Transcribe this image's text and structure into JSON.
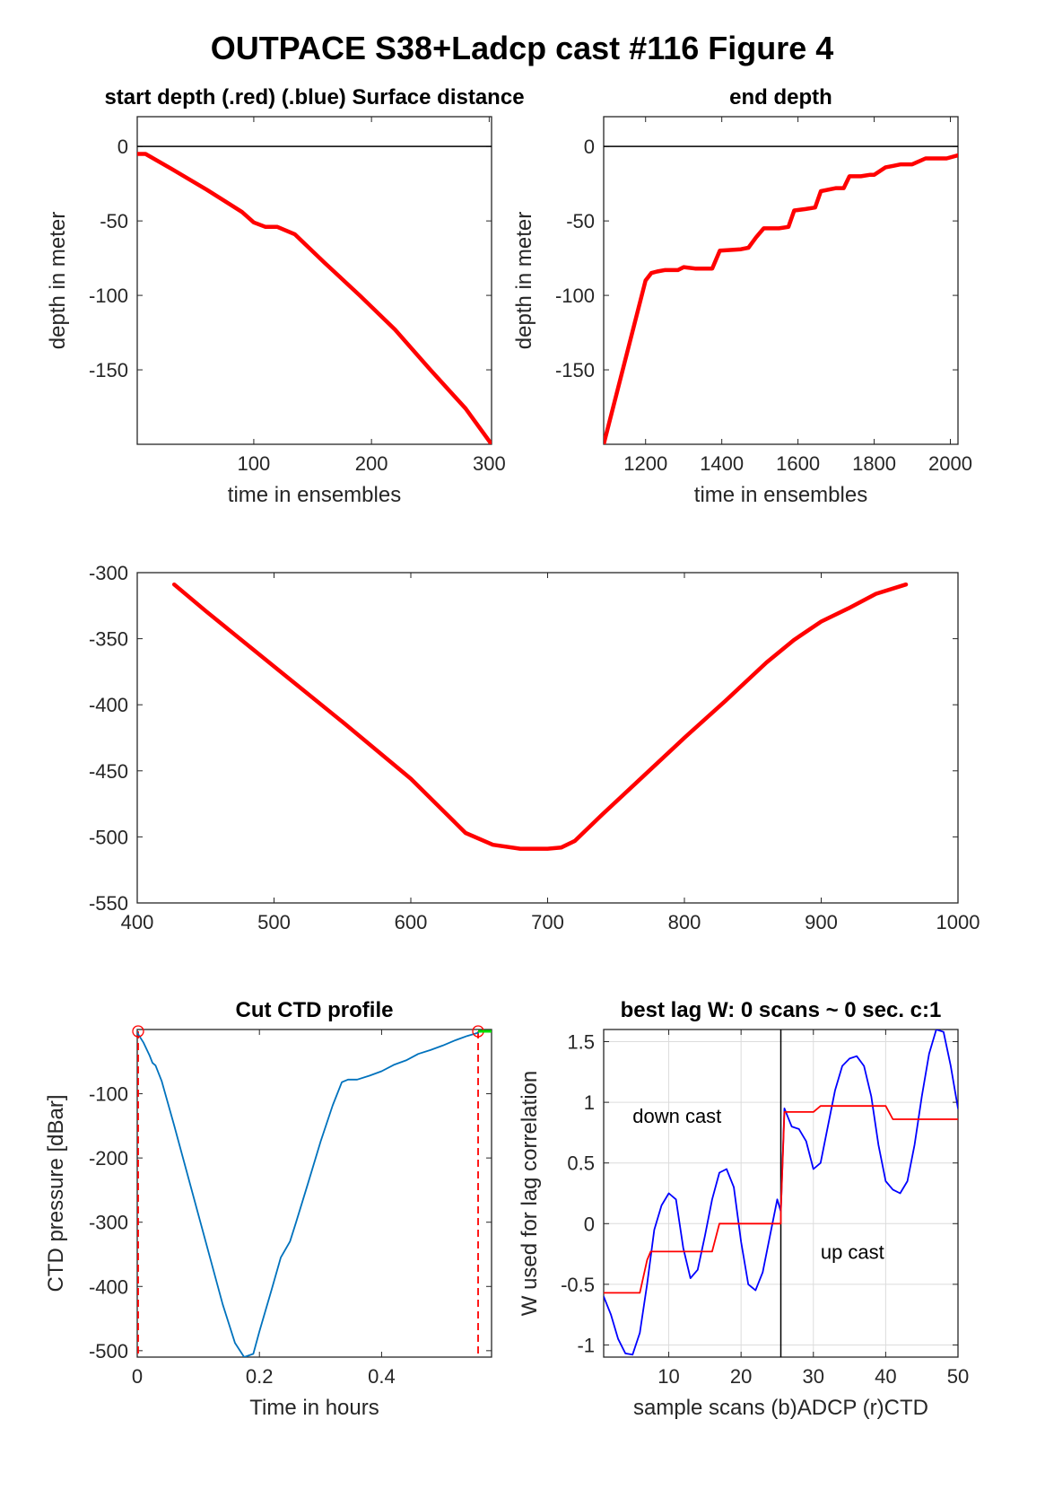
{
  "figure_title": "OUTPACE S38+Ladcp cast #116   Figure 4",
  "colors": {
    "red": "#ff0000",
    "blue": "#0000ff",
    "ctd": "#0072bd",
    "green": "#00dd00",
    "axis": "#262626",
    "zero_line": "#000000"
  },
  "chart_data": [
    {
      "id": "start_depth",
      "type": "line",
      "title": "start depth (.red) (.blue) Surface distance",
      "xlabel": "time in ensembles",
      "ylabel": "depth in meter",
      "xlim": [
        1,
        302
      ],
      "ylim": [
        -200,
        20
      ],
      "xticks": [
        100,
        200,
        300
      ],
      "yticks": [
        0,
        -50,
        -100,
        -150
      ],
      "hline": 0,
      "grid": false,
      "series": [
        {
          "color": "red",
          "x": [
            1,
            8,
            30,
            60,
            90,
            100,
            110,
            120,
            135,
            160,
            190,
            220,
            250,
            280,
            302
          ],
          "y": [
            -5,
            -5,
            -15,
            -29,
            -44,
            -51,
            -54,
            -54,
            -59,
            -78,
            -100,
            -123,
            -150,
            -176,
            -200
          ]
        }
      ]
    },
    {
      "id": "end_depth",
      "type": "line",
      "title": "end depth",
      "xlabel": "time in ensembles",
      "ylabel": "depth in meter",
      "xlim": [
        1090,
        2020
      ],
      "ylim": [
        -200,
        20
      ],
      "xticks": [
        1200,
        1400,
        1600,
        1800,
        2000
      ],
      "yticks": [
        0,
        -50,
        -100,
        -150
      ],
      "hline": 0,
      "grid": false,
      "series": [
        {
          "color": "red",
          "x": [
            1090,
            1200,
            1215,
            1230,
            1250,
            1285,
            1300,
            1330,
            1375,
            1395,
            1450,
            1470,
            1490,
            1510,
            1550,
            1575,
            1590,
            1620,
            1645,
            1660,
            1700,
            1720,
            1735,
            1765,
            1790,
            1800,
            1830,
            1850,
            1870,
            1900,
            1935,
            1945,
            1990,
            2020
          ],
          "y": [
            -200,
            -90,
            -85,
            -84,
            -83,
            -83,
            -81,
            -82,
            -82,
            -70,
            -69,
            -68,
            -61,
            -55,
            -55,
            -54,
            -43,
            -42,
            -41,
            -30,
            -28,
            -28,
            -20,
            -20,
            -19,
            -19,
            -14,
            -13,
            -12,
            -12,
            -8,
            -8,
            -8,
            -6
          ]
        }
      ]
    },
    {
      "id": "bottom_track",
      "type": "line",
      "title": "",
      "xlabel": "",
      "ylabel": "",
      "xlim": [
        400,
        1000
      ],
      "ylim": [
        -550,
        -300
      ],
      "xticks": [
        400,
        500,
        600,
        700,
        800,
        900,
        1000
      ],
      "yticks": [
        -300,
        -350,
        -400,
        -450,
        -500,
        -550
      ],
      "grid": false,
      "series": [
        {
          "color": "red",
          "x": [
            427,
            450,
            500,
            550,
            600,
            640,
            660,
            680,
            700,
            710,
            720,
            740,
            770,
            800,
            830,
            860,
            880,
            900,
            920,
            940,
            962
          ],
          "y": [
            -309,
            -329,
            -371,
            -413,
            -456,
            -497,
            -506,
            -509,
            -509,
            -508,
            -503,
            -483,
            -454,
            -425,
            -397,
            -368,
            -351,
            -337,
            -327,
            -316,
            -309
          ]
        }
      ]
    },
    {
      "id": "cut_ctd",
      "type": "line",
      "title": "Cut CTD profile",
      "xlabel": "Time in hours",
      "ylabel": "CTD pressure [dBar]",
      "xlim": [
        0,
        0.58
      ],
      "ylim": [
        -510,
        0
      ],
      "xticks": [
        0,
        0.2,
        0.4
      ],
      "yticks": [
        -100,
        -200,
        -300,
        -400,
        -500
      ],
      "grid": false,
      "cut_lines": [
        0,
        0.558
      ],
      "green_marker_x": [
        0.558,
        0.58
      ],
      "series": [
        {
          "color": "ctd",
          "x": [
            0,
            0.01,
            0.02,
            0.025,
            0.03,
            0.04,
            0.06,
            0.08,
            0.1,
            0.12,
            0.14,
            0.16,
            0.175,
            0.19,
            0.2,
            0.22,
            0.235,
            0.25,
            0.26,
            0.28,
            0.3,
            0.32,
            0.335,
            0.345,
            0.36,
            0.38,
            0.4,
            0.42,
            0.44,
            0.46,
            0.48,
            0.5,
            0.52,
            0.54,
            0.558
          ],
          "y": [
            -5,
            -20,
            -40,
            -52,
            -56,
            -80,
            -148,
            -218,
            -288,
            -358,
            -428,
            -488,
            -510,
            -505,
            -470,
            -405,
            -355,
            -330,
            -300,
            -238,
            -175,
            -118,
            -82,
            -78,
            -78,
            -72,
            -65,
            -55,
            -48,
            -38,
            -32,
            -25,
            -17,
            -10,
            -5
          ]
        }
      ]
    },
    {
      "id": "best_lag",
      "type": "line",
      "title": "best lag W: 0 scans ~ 0 sec.  c:1",
      "xlabel": "sample scans (b)ADCP (r)CTD",
      "ylabel": "W used for lag correlation",
      "xlim": [
        1,
        50
      ],
      "ylim": [
        -1.1,
        1.6
      ],
      "xticks": [
        10,
        20,
        30,
        40,
        50
      ],
      "yticks": [
        1.5,
        1,
        0.5,
        0,
        -0.5,
        -1
      ],
      "grid": true,
      "vline": 25.5,
      "annotations": [
        {
          "text": "down cast",
          "x": 5,
          "y": 0.83
        },
        {
          "text": "up cast",
          "x": 31,
          "y": -0.29
        }
      ],
      "series": [
        {
          "name": "ADCP",
          "color": "blue",
          "x": [
            1,
            2,
            3,
            4,
            5,
            6,
            7,
            8,
            9,
            10,
            11,
            12,
            13,
            14,
            15,
            16,
            17,
            18,
            19,
            20,
            21,
            22,
            23,
            24,
            25,
            25.5,
            26,
            27,
            28,
            29,
            30,
            31,
            32,
            33,
            34,
            35,
            36,
            37,
            38,
            39,
            40,
            41,
            42,
            43,
            44,
            45,
            46,
            47,
            48,
            49,
            50
          ],
          "y": [
            -0.6,
            -0.75,
            -0.95,
            -1.07,
            -1.08,
            -0.9,
            -0.5,
            -0.05,
            0.15,
            0.25,
            0.2,
            -0.2,
            -0.45,
            -0.38,
            -0.1,
            0.2,
            0.42,
            0.45,
            0.3,
            -0.15,
            -0.5,
            -0.55,
            -0.4,
            -0.1,
            0.2,
            0.1,
            0.95,
            0.8,
            0.78,
            0.68,
            0.45,
            0.5,
            0.8,
            1.1,
            1.3,
            1.36,
            1.38,
            1.3,
            1.05,
            0.65,
            0.35,
            0.28,
            0.25,
            0.35,
            0.65,
            1.05,
            1.4,
            1.6,
            1.58,
            1.3,
            0.95
          ]
        },
        {
          "name": "CTD",
          "color": "red",
          "x": [
            1,
            6,
            7,
            7.5,
            16,
            17,
            17.5,
            25.5,
            25.5,
            26,
            30,
            31,
            40,
            41,
            50
          ],
          "y": [
            -0.57,
            -0.57,
            -0.3,
            -0.23,
            -0.23,
            0,
            0,
            0,
            0.1,
            0.92,
            0.92,
            0.97,
            0.97,
            0.86,
            0.86
          ]
        }
      ]
    }
  ]
}
